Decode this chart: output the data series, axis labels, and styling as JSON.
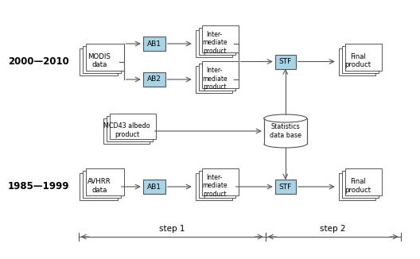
{
  "bg_color": "#ffffff",
  "line_color": "#555555",
  "box_blue_fill": "#a8d4e6",
  "box_white_fill": "#ffffff",
  "box_border": "#555555",
  "text_color": "#000000",
  "label_2000": "2000—2010",
  "label_1985": "1985—1999",
  "step1_label": "step 1",
  "step2_label": "step 2"
}
